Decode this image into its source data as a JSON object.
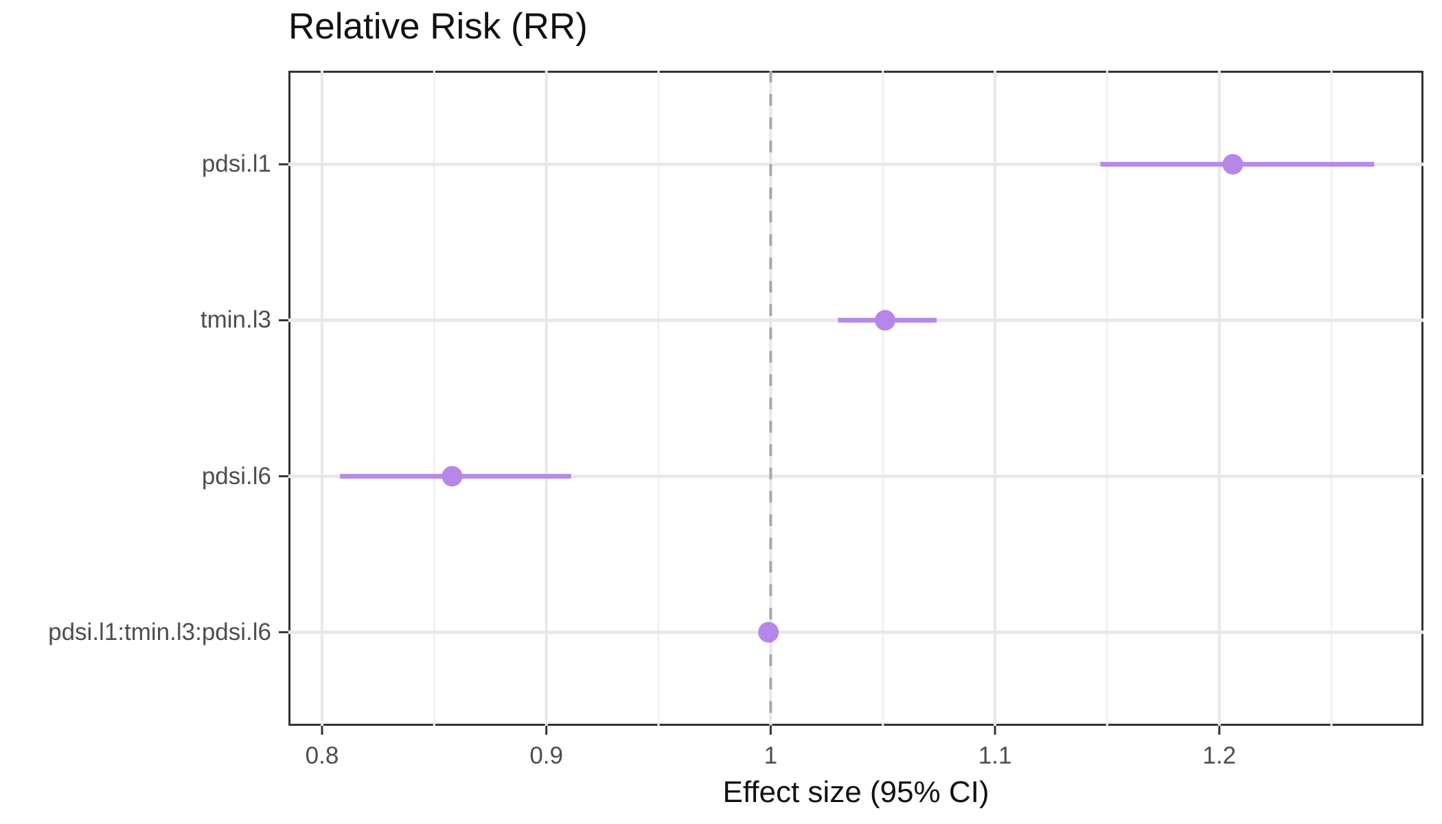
{
  "chart_data": {
    "type": "scatter",
    "subtype": "forest-pointrange",
    "title": "Relative Risk (RR)",
    "xlabel": "Effect size (95% CI)",
    "categories": [
      "pdsi.l1",
      "tmin.l3",
      "pdsi.l6",
      "pdsi.l1:tmin.l3:pdsi.l6"
    ],
    "points": [
      {
        "label": "pdsi.l1",
        "estimate": 1.206,
        "ci_low": 1.147,
        "ci_high": 1.269
      },
      {
        "label": "tmin.l3",
        "estimate": 1.051,
        "ci_low": 1.03,
        "ci_high": 1.074
      },
      {
        "label": "pdsi.l6",
        "estimate": 0.858,
        "ci_low": 0.808,
        "ci_high": 0.911
      },
      {
        "label": "pdsi.l1:tmin.l3:pdsi.l6",
        "estimate": 0.999,
        "ci_low": 0.997,
        "ci_high": 1.001
      }
    ],
    "xlim": [
      0.785,
      1.291
    ],
    "x_major_ticks": [
      0.8,
      0.9,
      1.0,
      1.1,
      1.2
    ],
    "x_tick_labels": [
      "0.8",
      "0.9",
      "1",
      "1.1",
      "1.2"
    ],
    "x_minor_ticks": [
      0.85,
      0.95,
      1.05,
      1.15,
      1.25
    ],
    "reference_line": {
      "x": 1.0,
      "style": "dashed"
    },
    "grid": "on",
    "legend": "none",
    "colors": {
      "point": "#b686e8",
      "ci_line": "#b88ae8",
      "reference_line": "#a8a8a8",
      "grid_major": "#e8e8e8",
      "grid_minor": "#f1f1f1",
      "panel_border": "#333333",
      "tick_mark": "#333333",
      "axis_text": "#4d4d4d",
      "title_text": "#111111",
      "background": "#ffffff"
    }
  }
}
